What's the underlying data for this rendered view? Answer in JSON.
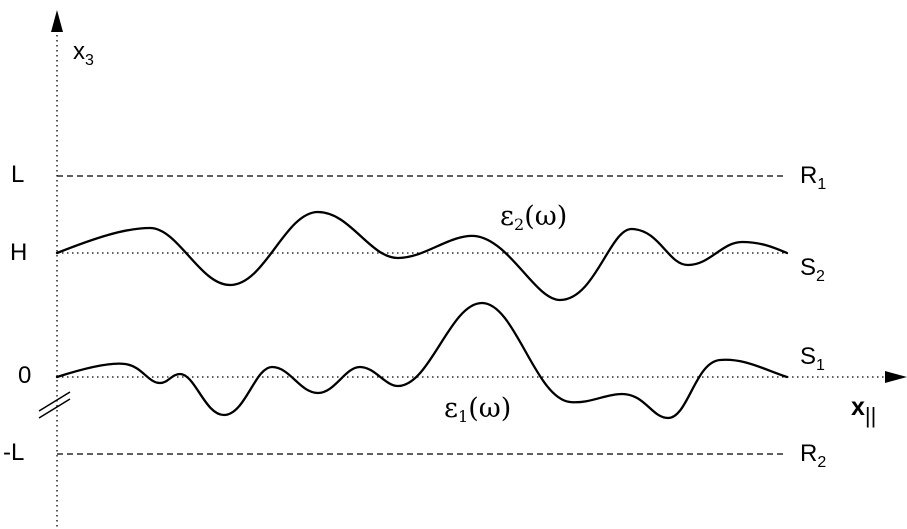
{
  "axes": {
    "vertical": {
      "symbol": "x",
      "subscript": "3"
    },
    "horizontal": {
      "symbol": "x",
      "subscript": "||"
    }
  },
  "levels": {
    "L": "L",
    "H": "H",
    "zero": "0",
    "minus_L": "-L"
  },
  "planes": {
    "R1": {
      "symbol": "R",
      "subscript": "1"
    },
    "R2": {
      "symbol": "R",
      "subscript": "2"
    }
  },
  "surfaces": {
    "S1": {
      "symbol": "S",
      "subscript": "1"
    },
    "S2": {
      "symbol": "S",
      "subscript": "2"
    }
  },
  "media": {
    "eps1": {
      "symbol": "ε",
      "subscript": "1",
      "arg": "(ω)"
    },
    "eps2": {
      "symbol": "ε",
      "subscript": "2",
      "arg": "(ω)"
    }
  }
}
